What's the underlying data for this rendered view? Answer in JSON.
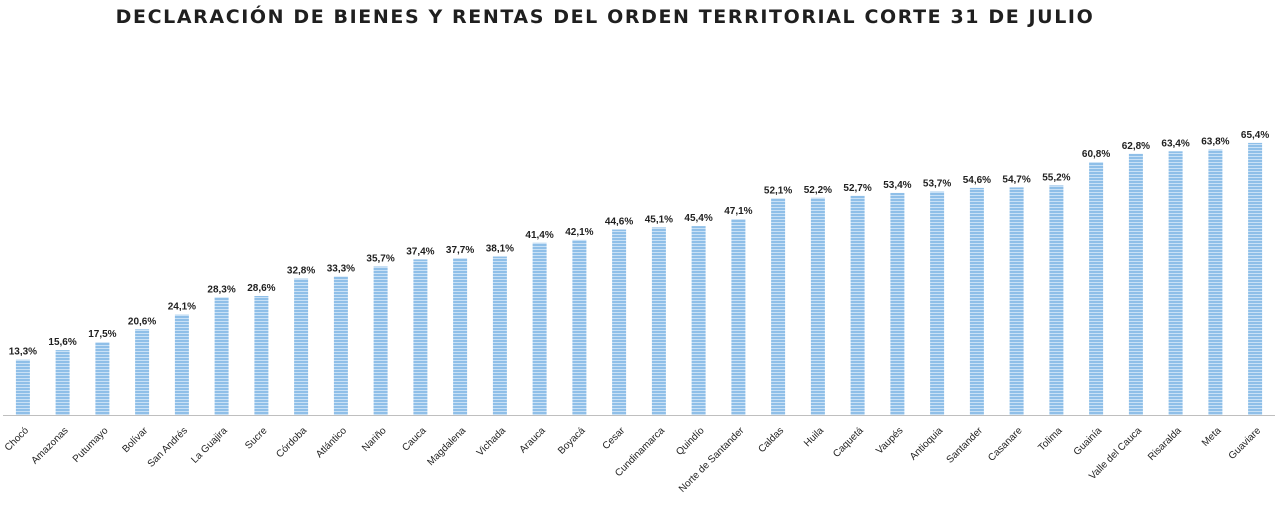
{
  "chart_data": {
    "type": "bar",
    "title": "DECLARACIÓN DE BIENES Y RENTAS DEL ORDEN TERRITORIAL CORTE 31 DE JULIO",
    "xlabel": "",
    "ylabel": "",
    "ylim": [
      0,
      70
    ],
    "grid": false,
    "bar_color": "#8fbfe8",
    "bar_stripe_color": "#c9e1f6",
    "categories": [
      "Chocó",
      "Amazonas",
      "Putumayo",
      "Bolívar",
      "San Andrés",
      "La Guajira",
      "Sucre",
      "Córdoba",
      "Atlántico",
      "Nariño",
      "Cauca",
      "Magdalena",
      "Vichada",
      "Arauca",
      "Boyacá",
      "Cesar",
      "Cundinamarca",
      "Quindío",
      "Norte de Santander",
      "Caldas",
      "Huila",
      "Caquetá",
      "Vaupés",
      "Antioquia",
      "Santander",
      "Casanare",
      "Tolima",
      "Guainía",
      "Valle del Cauca",
      "Risaralda",
      "Meta",
      "Guaviare"
    ],
    "values": [
      13.3,
      15.6,
      17.5,
      20.6,
      24.1,
      28.3,
      28.6,
      32.8,
      33.3,
      35.7,
      37.4,
      37.7,
      38.1,
      41.4,
      42.1,
      44.6,
      45.1,
      45.4,
      47.1,
      52.1,
      52.2,
      52.7,
      53.4,
      53.7,
      54.6,
      54.7,
      55.2,
      60.8,
      62.8,
      63.4,
      63.8,
      65.4
    ],
    "labels": [
      "13,3%",
      "15,6%",
      "17,5%",
      "20,6%",
      "24,1%",
      "28,3%",
      "28,6%",
      "32,8%",
      "33,3%",
      "35,7%",
      "37,4%",
      "37,7%",
      "38,1%",
      "41,4%",
      "42,1%",
      "44,6%",
      "45,1%",
      "45,4%",
      "47,1%",
      "52,1%",
      "52,2%",
      "52,7%",
      "53,4%",
      "53,7%",
      "54,6%",
      "54,7%",
      "55,2%",
      "60,8%",
      "62,8%",
      "63,4%",
      "63,8%",
      "65,4%"
    ]
  }
}
